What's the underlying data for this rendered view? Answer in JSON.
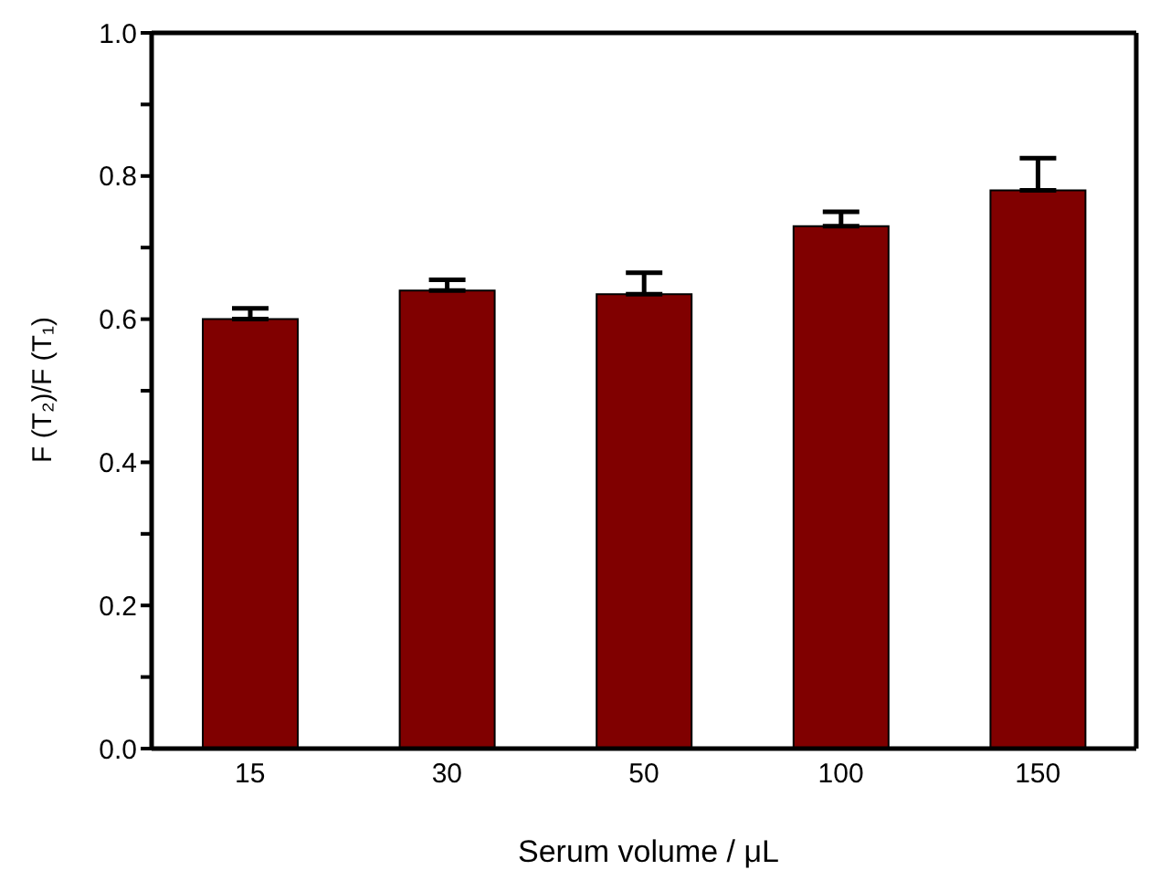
{
  "chart_data": {
    "type": "bar",
    "xlabel": "Serum volume / μL",
    "ylabel": "F (T₂)/F (T₁)",
    "categories": [
      "15",
      "30",
      "50",
      "100",
      "150"
    ],
    "values": [
      0.6,
      0.64,
      0.635,
      0.73,
      0.78
    ],
    "errors": [
      [
        0.6,
        0.615
      ],
      [
        0.64,
        0.655
      ],
      [
        0.635,
        0.665
      ],
      [
        0.73,
        0.75
      ],
      [
        0.78,
        0.825
      ]
    ],
    "color": "#800000",
    "ylim": [
      0,
      1.0
    ],
    "yticks": [
      {
        "value": 0,
        "label": "0.0"
      },
      {
        "value": 0.1,
        "label": null
      },
      0.2,
      {
        "value": 0.3,
        "label": null
      },
      0.4,
      {
        "value": 0.5,
        "label": null
      },
      0.6,
      {
        "value": 0.7,
        "label": null
      },
      0.8,
      {
        "value": 0.9,
        "label": null
      },
      {
        "value": 1.0,
        "label": "1.0"
      }
    ],
    "grid": false,
    "legend": false
  }
}
